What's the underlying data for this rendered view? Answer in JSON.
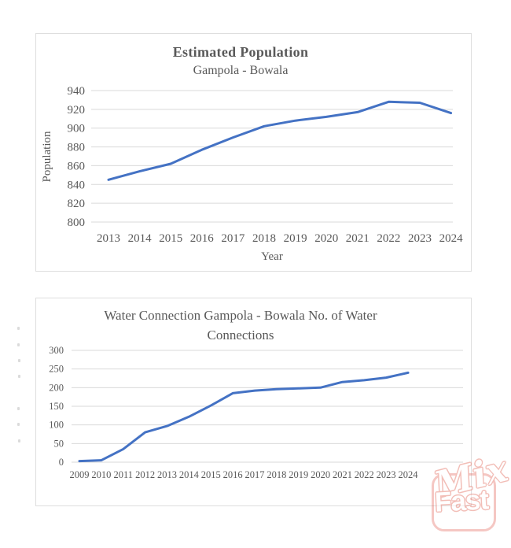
{
  "page": {
    "background": "#ffffff"
  },
  "chart_data": [
    {
      "type": "line",
      "title": "Estimated Population",
      "subtitle": "Gampola - Bowala",
      "xlabel": "Year",
      "ylabel": "Population",
      "categories": [
        "2013",
        "2014",
        "2015",
        "2016",
        "2017",
        "2018",
        "2019",
        "2020",
        "2021",
        "2022",
        "2023",
        "2024"
      ],
      "values": [
        845,
        854,
        862,
        877,
        890,
        902,
        908,
        912,
        917,
        928,
        927,
        916
      ],
      "ylim": [
        800,
        940
      ],
      "yticks": [
        800,
        820,
        840,
        860,
        880,
        900,
        920,
        940
      ],
      "grid": true,
      "legend": false,
      "line_color": "#4472c4",
      "text_color": "#595959",
      "grid_color": "#d9d9d9"
    },
    {
      "type": "line",
      "title": "Water Connection Gampola - Bowala No. of Water Connections",
      "title_lines": [
        "Water Connection Gampola - Bowala No. of Water",
        "Connections"
      ],
      "xlabel": "",
      "ylabel": "",
      "categories": [
        "2009",
        "2010",
        "2011",
        "2012",
        "2013",
        "2014",
        "2015",
        "2016",
        "2017",
        "2018",
        "2019",
        "2020",
        "2021",
        "2022",
        "2023",
        "2024"
      ],
      "values": [
        3,
        5,
        35,
        80,
        97,
        122,
        152,
        185,
        192,
        196,
        198,
        200,
        215,
        220,
        227,
        240
      ],
      "ylim": [
        0,
        300
      ],
      "yticks": [
        0,
        50,
        100,
        150,
        200,
        250,
        300
      ],
      "grid": true,
      "legend": false,
      "line_color": "#4472c4",
      "text_color": "#595959",
      "grid_color": "#d9d9d9"
    }
  ],
  "watermark": {
    "word1": "Mix",
    "word2": "Fast",
    "color": "#e0564a"
  }
}
